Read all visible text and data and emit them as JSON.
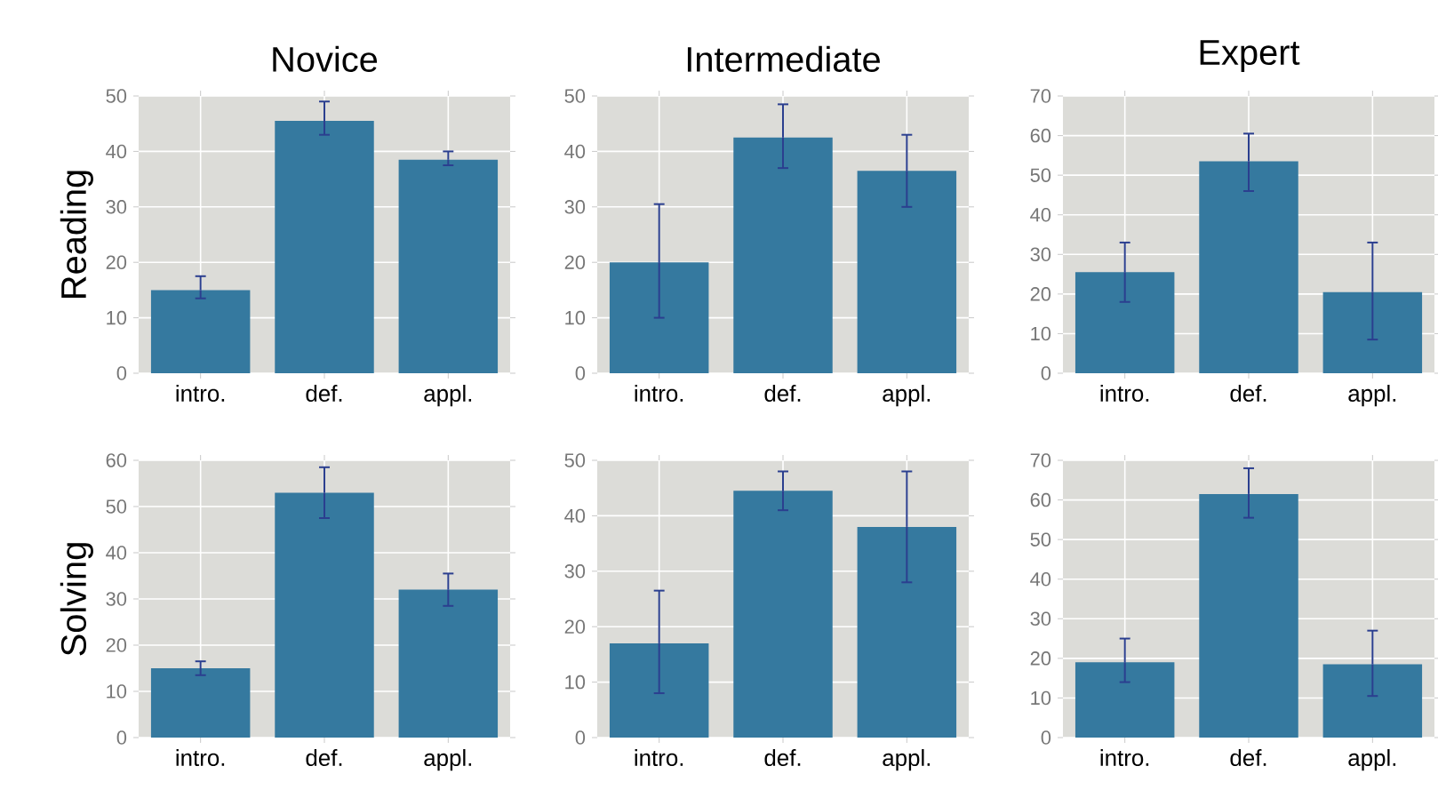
{
  "chart_data": [
    {
      "type": "bar",
      "title": "Novice",
      "ylabel": "Reading",
      "categories": [
        "intro.",
        "def.",
        "appl."
      ],
      "values": [
        15,
        45.5,
        38.5
      ],
      "errors": [
        [
          13.5,
          17.5
        ],
        [
          43,
          49
        ],
        [
          37.5,
          40
        ]
      ],
      "color": "#35799f",
      "ylim": [
        0,
        50
      ],
      "yticks": [
        0,
        10,
        20,
        30,
        40,
        50
      ],
      "grid": true
    },
    {
      "type": "bar",
      "title": "Intermediate",
      "categories": [
        "intro.",
        "def.",
        "appl."
      ],
      "values": [
        20,
        42.5,
        36.5
      ],
      "errors": [
        [
          10,
          30.5
        ],
        [
          37,
          48.5
        ],
        [
          30,
          43
        ]
      ],
      "color": "#35799f",
      "ylim": [
        0,
        50
      ],
      "yticks": [
        0,
        10,
        20,
        30,
        40,
        50
      ],
      "grid": true
    },
    {
      "type": "bar",
      "title": "Expert",
      "categories": [
        "intro.",
        "def.",
        "appl."
      ],
      "values": [
        25.5,
        53.5,
        20.5
      ],
      "errors": [
        [
          18,
          33
        ],
        [
          46,
          60.5
        ],
        [
          8.5,
          33
        ]
      ],
      "color": "#35799f",
      "ylim": [
        0,
        70
      ],
      "yticks": [
        0,
        10,
        20,
        30,
        40,
        50,
        60,
        70
      ],
      "grid": true
    },
    {
      "type": "bar",
      "ylabel": "Solving",
      "categories": [
        "intro.",
        "def.",
        "appl."
      ],
      "values": [
        15,
        53,
        32
      ],
      "errors": [
        [
          13.5,
          16.5
        ],
        [
          47.5,
          58.5
        ],
        [
          28.5,
          35.5
        ]
      ],
      "color": "#35799f",
      "ylim": [
        0,
        60
      ],
      "yticks": [
        0,
        10,
        20,
        30,
        40,
        50,
        60
      ],
      "grid": true
    },
    {
      "type": "bar",
      "categories": [
        "intro.",
        "def.",
        "appl."
      ],
      "values": [
        17,
        44.5,
        38
      ],
      "errors": [
        [
          8,
          26.5
        ],
        [
          41,
          48
        ],
        [
          28,
          48
        ]
      ],
      "color": "#35799f",
      "ylim": [
        0,
        50
      ],
      "yticks": [
        0,
        10,
        20,
        30,
        40,
        50
      ],
      "grid": true
    },
    {
      "type": "bar",
      "categories": [
        "intro.",
        "def.",
        "appl."
      ],
      "values": [
        19,
        61.5,
        18.5
      ],
      "errors": [
        [
          14,
          25
        ],
        [
          55.5,
          68
        ],
        [
          10.5,
          27
        ]
      ],
      "color": "#35799f",
      "ylim": [
        0,
        70
      ],
      "yticks": [
        0,
        10,
        20,
        30,
        40,
        50,
        60,
        70
      ],
      "grid": true
    }
  ]
}
